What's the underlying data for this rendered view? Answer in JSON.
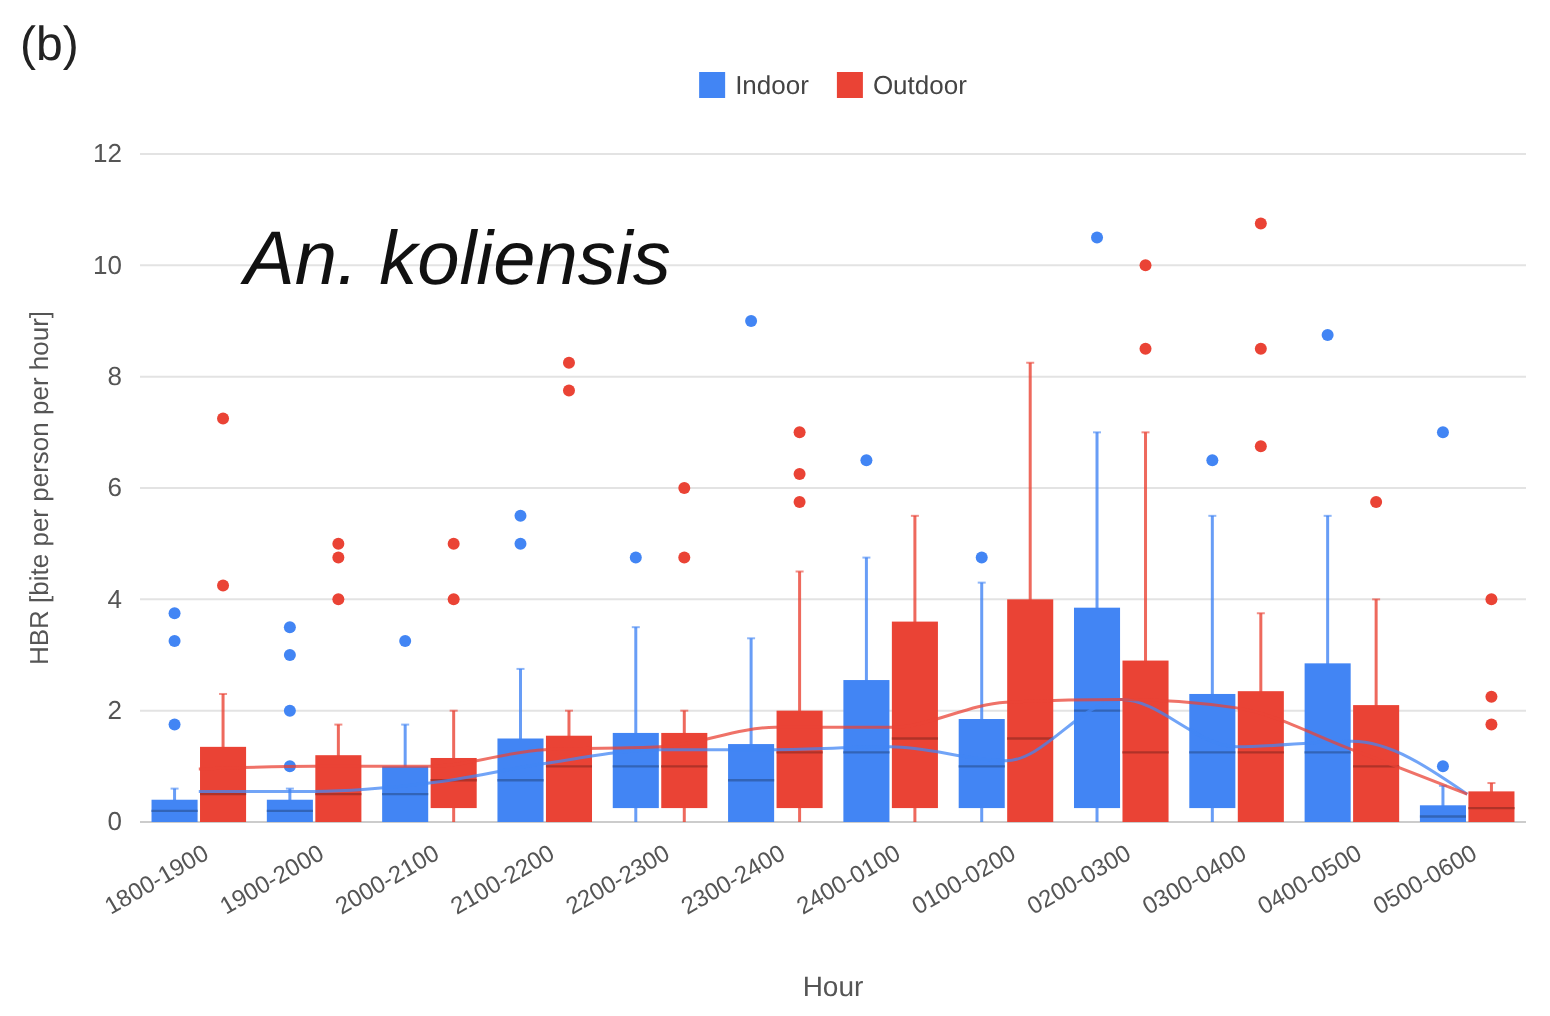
{
  "chart_data": {
    "type": "box",
    "title": "(b)",
    "xlabel": "Hour",
    "ylabel": "HBR [bite per person per hour]",
    "annotations": [
      "An. koliensis"
    ],
    "categories": [
      "1800-1900",
      "1900-2000",
      "2000-2100",
      "2100-2200",
      "2200-2300",
      "2300-2400",
      "2400-0100",
      "0100-0200",
      "0200-0300",
      "0300-0400",
      "0400-0500",
      "0500-0600"
    ],
    "ylim": [
      0,
      12
    ],
    "yticks": [
      0,
      2,
      4,
      6,
      8,
      10,
      12
    ],
    "grid": "y",
    "legend": "top",
    "series": [
      {
        "name": "Indoor",
        "color": "#4285f4",
        "boxes": [
          {
            "low": 0,
            "q1": 0,
            "median": 0.2,
            "q3": 0.4,
            "high": 0.6,
            "outliers": [
              1.75,
              3.25,
              3.75
            ]
          },
          {
            "low": 0,
            "q1": 0,
            "median": 0.2,
            "q3": 0.4,
            "high": 0.6,
            "outliers": [
              1,
              2,
              3,
              3.5
            ]
          },
          {
            "low": 0,
            "q1": 0,
            "median": 0.5,
            "q3": 1,
            "high": 1.75,
            "outliers": [
              3.25
            ]
          },
          {
            "low": 0,
            "q1": 0,
            "median": 0.75,
            "q3": 1.5,
            "high": 2.75,
            "outliers": [
              5,
              5.5
            ]
          },
          {
            "low": 0,
            "q1": 0.25,
            "median": 1,
            "q3": 1.6,
            "high": 3.5,
            "outliers": [
              4.75
            ]
          },
          {
            "low": 0,
            "q1": 0,
            "median": 0.75,
            "q3": 1.4,
            "high": 3.3,
            "outliers": [
              9
            ]
          },
          {
            "low": 0,
            "q1": 0,
            "median": 1.25,
            "q3": 2.55,
            "high": 4.75,
            "outliers": [
              6.5
            ]
          },
          {
            "low": 0,
            "q1": 0.25,
            "median": 1,
            "q3": 1.85,
            "high": 4.3,
            "outliers": [
              4.75
            ]
          },
          {
            "low": 0,
            "q1": 0.25,
            "median": 2,
            "q3": 3.85,
            "high": 7,
            "outliers": [
              10.5
            ]
          },
          {
            "low": 0,
            "q1": 0.25,
            "median": 1.25,
            "q3": 2.3,
            "high": 5.5,
            "outliers": [
              6.5
            ]
          },
          {
            "low": 0,
            "q1": 0,
            "median": 1.25,
            "q3": 2.85,
            "high": 5.5,
            "outliers": [
              8.75
            ]
          },
          {
            "low": 0,
            "q1": 0,
            "median": 0.1,
            "q3": 0.3,
            "high": 0.65,
            "outliers": [
              1,
              7
            ]
          }
        ]
      },
      {
        "name": "Outdoor",
        "color": "#ea4335",
        "boxes": [
          {
            "low": 0,
            "q1": 0,
            "median": 0.5,
            "q3": 1.35,
            "high": 2.3,
            "outliers": [
              4.25,
              7.25
            ]
          },
          {
            "low": 0,
            "q1": 0,
            "median": 0.5,
            "q3": 1.2,
            "high": 1.75,
            "outliers": [
              4,
              4.75,
              5
            ]
          },
          {
            "low": 0,
            "q1": 0.25,
            "median": 0.75,
            "q3": 1.15,
            "high": 2,
            "outliers": [
              4,
              5
            ]
          },
          {
            "low": 0,
            "q1": 0,
            "median": 1,
            "q3": 1.55,
            "high": 2,
            "outliers": [
              7.75,
              8.25
            ]
          },
          {
            "low": 0,
            "q1": 0.25,
            "median": 1,
            "q3": 1.6,
            "high": 2,
            "outliers": [
              4.75,
              6
            ]
          },
          {
            "low": 0,
            "q1": 0.25,
            "median": 1.25,
            "q3": 2,
            "high": 4.5,
            "outliers": [
              5.75,
              6.25,
              7
            ]
          },
          {
            "low": 0,
            "q1": 0.25,
            "median": 1.5,
            "q3": 3.6,
            "high": 5.5
          },
          {
            "low": 0,
            "q1": 0,
            "median": 1.5,
            "q3": 4,
            "high": 8.25
          },
          {
            "low": 0,
            "q1": 0,
            "median": 1.25,
            "q3": 2.9,
            "high": 7,
            "outliers": [
              8.5,
              10
            ]
          },
          {
            "low": 0,
            "q1": 0,
            "median": 1.25,
            "q3": 2.35,
            "high": 3.75,
            "outliers": [
              6.75,
              8.5,
              10.75
            ]
          },
          {
            "low": 0,
            "q1": 0,
            "median": 1,
            "q3": 2.1,
            "high": 4,
            "outliers": [
              5.75
            ]
          },
          {
            "low": 0,
            "q1": 0,
            "median": 0.25,
            "q3": 0.55,
            "high": 0.7,
            "outliers": [
              1.75,
              2.25,
              4
            ]
          }
        ]
      },
      {
        "type": "line",
        "color": "#4285f4",
        "values": [
          0.55,
          0.55,
          0.7,
          1.05,
          1.3,
          1.3,
          1.35,
          1.1,
          2.2,
          1.35,
          1.45,
          0.5
        ]
      },
      {
        "type": "line",
        "color": "#ea4335",
        "values": [
          0.95,
          1,
          1,
          1.3,
          1.35,
          1.7,
          1.7,
          2.15,
          2.2,
          2.05,
          1.3,
          0.5
        ]
      }
    ]
  }
}
